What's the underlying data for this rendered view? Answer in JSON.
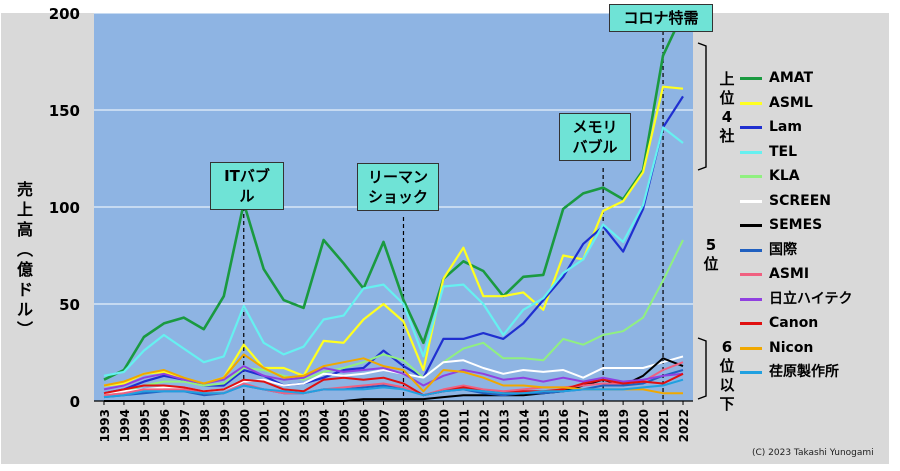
{
  "chart_data": {
    "type": "line",
    "ylabel_chars": [
      "売",
      "上",
      "高",
      "︵",
      "億",
      "ド",
      "ル",
      "︶"
    ],
    "ylim": [
      0,
      200
    ],
    "yticks": [
      "0",
      "50",
      "100",
      "150",
      "200"
    ],
    "x": [
      "1993",
      "1994",
      "1995",
      "1996",
      "1997",
      "1998",
      "1999",
      "2000",
      "2001",
      "2002",
      "2003",
      "2004",
      "2005",
      "2006",
      "2007",
      "2008",
      "2009",
      "2010",
      "2011",
      "2012",
      "2013",
      "2014",
      "2015",
      "2016",
      "2017",
      "2018",
      "2019",
      "2020",
      "2021",
      "2022"
    ],
    "grid": true,
    "legend_position": "right",
    "series": [
      {
        "name": "AMAT",
        "color": "#1a9a40",
        "width": 2.6,
        "values": [
          11,
          16,
          33,
          40,
          43,
          37,
          54,
          102,
          68,
          52,
          48,
          83,
          71,
          58,
          82,
          52,
          30,
          63,
          72,
          67,
          54,
          64,
          65,
          99,
          107,
          110,
          104,
          119,
          178,
          200
        ]
      },
      {
        "name": "ASML",
        "color": "#ffff20",
        "width": 2.2,
        "values": [
          8,
          9,
          14,
          15,
          11,
          9,
          12,
          29,
          17,
          17,
          13,
          31,
          30,
          42,
          50,
          41,
          16,
          63,
          79,
          54,
          54,
          56,
          47,
          75,
          73,
          98,
          103,
          118,
          162,
          161
        ]
      },
      {
        "name": "Lam",
        "color": "#1f2fd0",
        "width": 2.2,
        "values": [
          4,
          6,
          10,
          13,
          11,
          8,
          8,
          16,
          13,
          8,
          9,
          12,
          16,
          17,
          26,
          18,
          12,
          32,
          32,
          35,
          32,
          40,
          52,
          64,
          81,
          90,
          77,
          99,
          141,
          157
        ]
      },
      {
        "name": "TEL",
        "color": "#66f0f0",
        "width": 2.2,
        "values": [
          13,
          15,
          26,
          34,
          27,
          20,
          23,
          49,
          30,
          24,
          28,
          42,
          44,
          58,
          60,
          50,
          23,
          59,
          60,
          50,
          34,
          47,
          53,
          66,
          73,
          91,
          82,
          101,
          141,
          133
        ]
      },
      {
        "name": "KLA",
        "color": "#90f080",
        "width": 2.0,
        "values": [
          3,
          5,
          8,
          10,
          10,
          8,
          9,
          17,
          16,
          13,
          11,
          15,
          17,
          20,
          24,
          21,
          12,
          20,
          27,
          30,
          22,
          22,
          21,
          32,
          29,
          34,
          36,
          43,
          62,
          83
        ]
      },
      {
        "name": "SCREEN",
        "color": "#ffffff",
        "width": 2.0,
        "values": [
          4,
          5,
          6,
          7,
          7,
          5,
          6,
          10,
          11,
          8,
          9,
          14,
          13,
          14,
          16,
          14,
          12,
          20,
          21,
          17,
          14,
          16,
          15,
          16,
          12,
          17,
          17,
          17,
          20,
          23
        ]
      },
      {
        "name": "SEMES",
        "color": "#000000",
        "width": 2.0,
        "values": [
          0,
          0,
          0,
          0,
          0,
          0,
          0,
          0,
          0,
          0,
          0,
          0,
          0,
          1,
          1,
          1,
          1,
          2,
          3,
          3,
          3,
          3,
          4,
          5,
          8,
          11,
          8,
          13,
          22,
          18
        ]
      },
      {
        "name": "国際",
        "color": "#2060c0",
        "width": 2.0,
        "values": [
          2,
          3,
          4,
          5,
          5,
          3,
          4,
          8,
          6,
          4,
          4,
          6,
          6,
          7,
          8,
          7,
          3,
          5,
          6,
          4,
          3,
          4,
          4,
          5,
          6,
          8,
          8,
          9,
          13,
          16
        ]
      },
      {
        "name": "ASMI",
        "color": "#f06080",
        "width": 2.0,
        "values": [
          3,
          4,
          6,
          6,
          6,
          4,
          4,
          9,
          6,
          4,
          4,
          6,
          7,
          8,
          9,
          7,
          3,
          6,
          8,
          6,
          5,
          6,
          7,
          7,
          8,
          9,
          9,
          10,
          16,
          20
        ]
      },
      {
        "name": "日立ハイテク",
        "color": "#9040e0",
        "width": 2.0,
        "values": [
          6,
          8,
          12,
          14,
          11,
          9,
          11,
          18,
          13,
          11,
          12,
          17,
          15,
          16,
          17,
          14,
          8,
          13,
          16,
          14,
          11,
          12,
          10,
          12,
          10,
          12,
          10,
          11,
          13,
          14
        ]
      },
      {
        "name": "Canon",
        "color": "#e01010",
        "width": 2.0,
        "values": [
          4,
          6,
          8,
          8,
          7,
          5,
          6,
          11,
          10,
          6,
          5,
          11,
          12,
          11,
          12,
          9,
          3,
          5,
          7,
          5,
          4,
          5,
          5,
          6,
          9,
          11,
          9,
          10,
          9,
          14
        ]
      },
      {
        "name": "Nicon",
        "color": "#f0a800",
        "width": 2.0,
        "values": [
          8,
          10,
          14,
          16,
          12,
          9,
          12,
          24,
          17,
          12,
          13,
          18,
          20,
          22,
          18,
          16,
          5,
          16,
          15,
          12,
          8,
          8,
          7,
          7,
          6,
          6,
          6,
          6,
          4,
          4
        ]
      },
      {
        "name": "荏原製作所",
        "color": "#20a0e0",
        "width": 2.0,
        "values": [
          2,
          3,
          5,
          5,
          5,
          4,
          4,
          8,
          6,
          5,
          4,
          6,
          6,
          6,
          7,
          6,
          3,
          5,
          6,
          5,
          4,
          4,
          5,
          5,
          6,
          6,
          6,
          7,
          8,
          11
        ]
      }
    ],
    "annotations": [
      {
        "text_lines": [
          "ITバブル"
        ],
        "year": "2000"
      },
      {
        "text_lines": [
          "リーマン",
          "ショック"
        ],
        "year": "2008"
      },
      {
        "text_lines": [
          "メモリ",
          "バブル"
        ],
        "year": "2018"
      },
      {
        "text_lines": [
          "コロナ特需"
        ],
        "year": "2021"
      }
    ],
    "rank_groups": [
      {
        "chars": [
          "上",
          "位",
          "4",
          "社"
        ]
      },
      {
        "chars": [
          "5",
          "位"
        ]
      },
      {
        "chars": [
          "6",
          "位",
          "以",
          "下"
        ]
      }
    ]
  },
  "copyright": "(C) 2023 Takashi Yunogami"
}
